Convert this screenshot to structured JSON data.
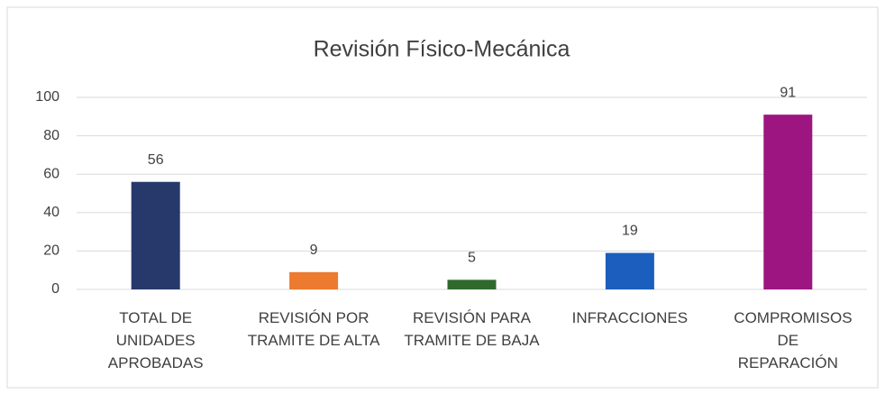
{
  "chart_data": {
    "type": "bar",
    "title": "Revisión Físico-Mecánica",
    "categories": [
      "TOTAL DE UNIDADES APROBADAS",
      "REVISIÓN POR TRAMITE DE ALTA",
      "REVISIÓN PARA TRAMITE DE BAJA",
      "INFRACCIONES",
      "COMPROMISOS DE REPARACIÓN"
    ],
    "values": [
      56,
      9,
      5,
      19,
      91
    ],
    "colors": [
      "#27386b",
      "#ec7a2f",
      "#2f6a2c",
      "#1b5ebd",
      "#9c1580"
    ],
    "ylim": [
      0,
      100
    ],
    "yticks": [
      0,
      20,
      40,
      60,
      80,
      100
    ],
    "grid": true
  }
}
